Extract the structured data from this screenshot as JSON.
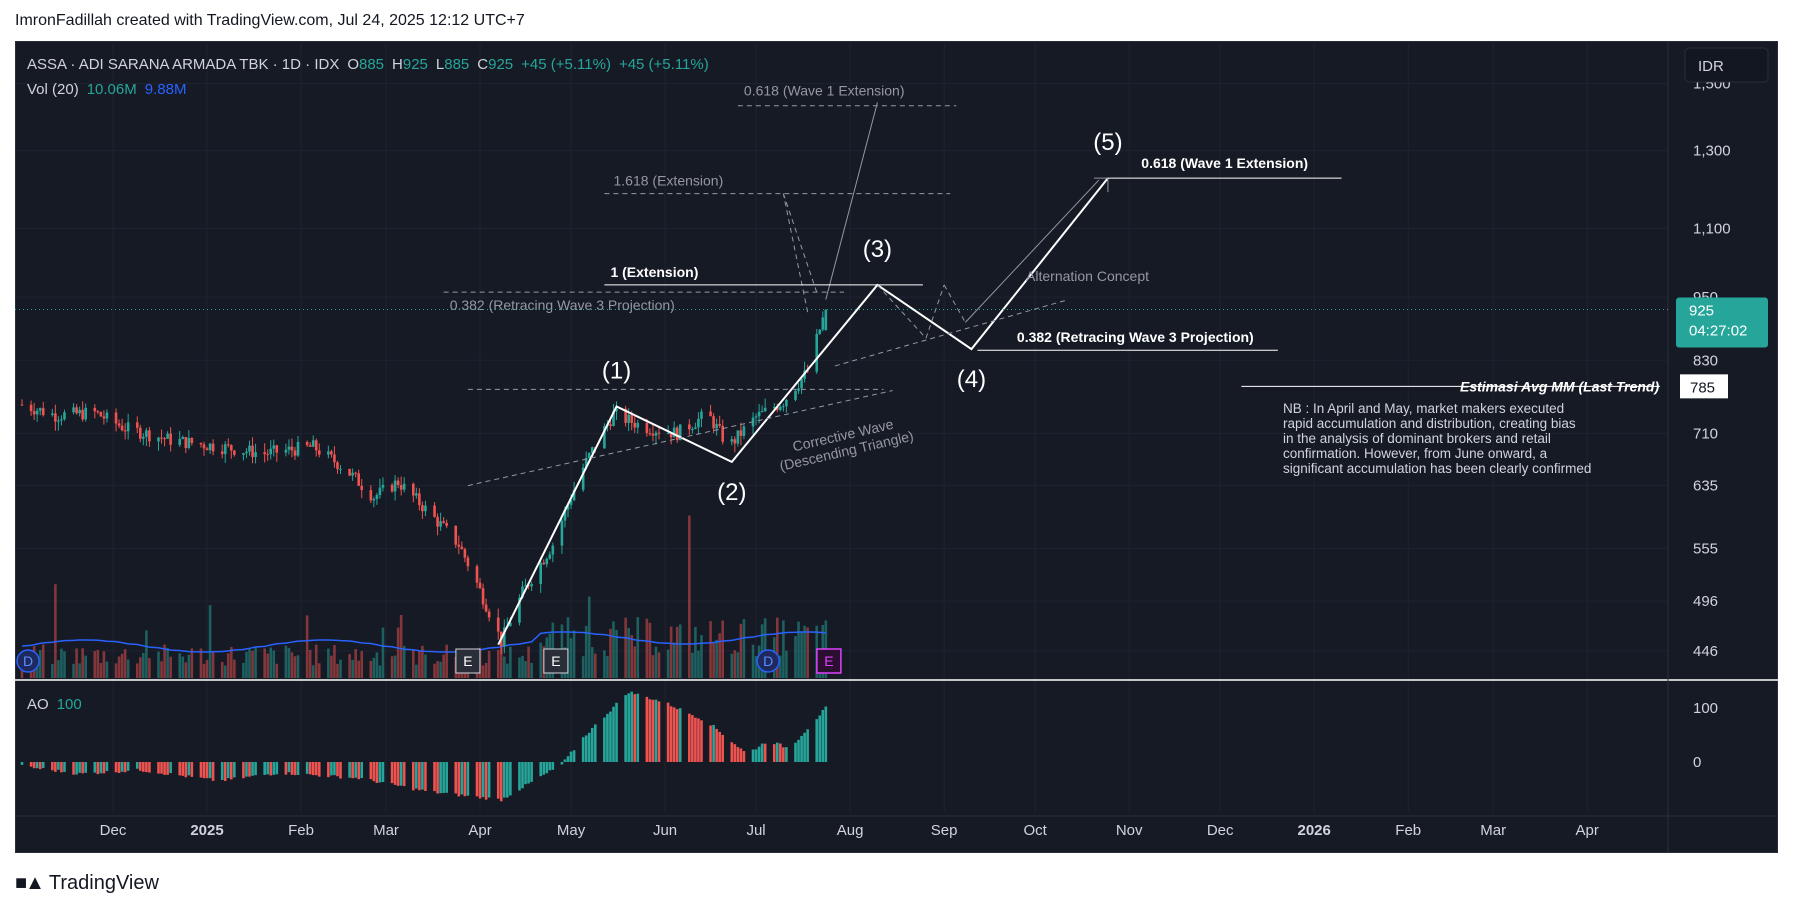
{
  "header": {
    "text": "ImronFadillah created with TradingView.com, Jul 24, 2025 12:12 UTC+7"
  },
  "footer": {
    "brand": "TradingView"
  },
  "legend": {
    "ticker": "ASSA · ADI SARANA ARMADA TBK · 1D · IDX",
    "o_label": "O",
    "o_value": "885",
    "h_label": "H",
    "h_value": "925",
    "l_label": "L",
    "l_value": "885",
    "c_label": "C",
    "c_value": "925",
    "change1": "+45 (+5.11%)",
    "change2": "+45 (+5.11%)",
    "vol_label": "Vol (20)",
    "vol_value1": "10.06M",
    "vol_value2": "9.88M",
    "ao_label": "AO",
    "ao_value": "100"
  },
  "currency": "IDR",
  "price_badge": {
    "price": "925",
    "countdown": "04:27:02"
  },
  "estimasi_badge": "785",
  "colors": {
    "up": "#26a69a",
    "down": "#ef5350",
    "bg": "#161a25",
    "vol_ma": "#2962ff",
    "badge": "#26a69a",
    "text": "#d1d4dc"
  },
  "chart_data": {
    "type": "candlestick",
    "title": "ASSA · ADI SARANA ARMADA TBK · 1D · IDX",
    "y_scale": "log",
    "ylim": [
      430,
      1560
    ],
    "y_ticks": [
      "1,500",
      "1,300",
      "1,100",
      "950",
      "830",
      "710",
      "635",
      "555",
      "496",
      "446"
    ],
    "y_tick_values": [
      1500,
      1300,
      1100,
      950,
      830,
      710,
      635,
      555,
      496,
      446
    ],
    "x_ticks": [
      "Dec",
      "2025",
      "Feb",
      "Mar",
      "Apr",
      "May",
      "Jun",
      "Jul",
      "Aug",
      "Sep",
      "Oct",
      "Nov",
      "Dec",
      "2026",
      "Feb",
      "Mar",
      "Apr"
    ],
    "x_tick_dates": [
      "2024-12-01",
      "2025-01-01",
      "2025-02-01",
      "2025-03-01",
      "2025-04-01",
      "2025-05-01",
      "2025-06-01",
      "2025-07-01",
      "2025-08-01",
      "2025-09-01",
      "2025-10-01",
      "2025-11-01",
      "2025-12-01",
      "2026-01-01",
      "2026-02-01",
      "2026-03-01",
      "2026-04-01"
    ],
    "price_anchors": [
      [
        "2024-11-01",
        755
      ],
      [
        "2024-11-12",
        738
      ],
      [
        "2024-11-25",
        742
      ],
      [
        "2024-12-05",
        718
      ],
      [
        "2024-12-20",
        700
      ],
      [
        "2025-01-05",
        690
      ],
      [
        "2025-01-20",
        680
      ],
      [
        "2025-02-05",
        690
      ],
      [
        "2025-02-15",
        660
      ],
      [
        "2025-02-25",
        620
      ],
      [
        "2025-03-05",
        640
      ],
      [
        "2025-03-15",
        600
      ],
      [
        "2025-03-25",
        560
      ],
      [
        "2025-04-08",
        455
      ],
      [
        "2025-04-15",
        505
      ],
      [
        "2025-04-25",
        560
      ],
      [
        "2025-05-05",
        660
      ],
      [
        "2025-05-15",
        740
      ],
      [
        "2025-05-25",
        720
      ],
      [
        "2025-06-05",
        710
      ],
      [
        "2025-06-15",
        740
      ],
      [
        "2025-06-22",
        690
      ],
      [
        "2025-07-01",
        735
      ],
      [
        "2025-07-10",
        760
      ],
      [
        "2025-07-18",
        810
      ],
      [
        "2025-07-24",
        925
      ]
    ],
    "last_candle": {
      "date": "2025-07-24",
      "open": 885,
      "high": 925,
      "low": 885,
      "close": 925
    },
    "volume": {
      "last": 10.06,
      "ma20": 9.88,
      "unit": "M"
    },
    "ao_anchors": [
      [
        "2024-11-01",
        -8
      ],
      [
        "2024-11-20",
        -22
      ],
      [
        "2024-12-10",
        -15
      ],
      [
        "2025-01-05",
        -35
      ],
      [
        "2025-01-25",
        -20
      ],
      [
        "2025-02-20",
        -30
      ],
      [
        "2025-03-15",
        -55
      ],
      [
        "2025-04-08",
        -70
      ],
      [
        "2025-04-28",
        -5
      ],
      [
        "2025-05-05",
        45
      ],
      [
        "2025-05-20",
        130
      ],
      [
        "2025-06-01",
        110
      ],
      [
        "2025-06-15",
        75
      ],
      [
        "2025-06-28",
        15
      ],
      [
        "2025-07-05",
        40
      ],
      [
        "2025-07-12",
        25
      ],
      [
        "2025-07-24",
        100
      ]
    ],
    "ao_ticks": [
      "100",
      "0"
    ],
    "ao_tick_values": [
      100,
      0
    ],
    "elliott_waves": [
      {
        "label": "(1)",
        "date": "2025-05-16",
        "price": 752
      },
      {
        "label": "(2)",
        "date": "2025-06-23",
        "price": 668
      },
      {
        "label": "(3)",
        "date": "2025-08-10",
        "price": 975
      },
      {
        "label": "(4)",
        "date": "2025-09-10",
        "price": 850
      },
      {
        "label": "(5)",
        "date": "2025-10-25",
        "price": 1225
      }
    ],
    "wave_start": {
      "date": "2025-04-07",
      "price": 452
    },
    "levels": [
      {
        "label": "0.618 (Wave 1 Extension)",
        "price": 1430,
        "from": "2025-06-25",
        "to": "2025-09-05",
        "style": "dashed"
      },
      {
        "label": "1.618 (Extension)",
        "price": 1185,
        "from": "2025-05-12",
        "to": "2025-09-03",
        "style": "dashed"
      },
      {
        "label": "1 (Extension)",
        "price": 975,
        "from": "2025-05-12",
        "to": "2025-08-25",
        "style": "solid"
      },
      {
        "label": "0.382 (Retracing Wave 3 Projection)",
        "price": 960,
        "from": "2025-03-20",
        "to": "2025-07-30",
        "style": "dashed"
      },
      {
        "label": "0.618 (Wave 1 Extension)",
        "price": 1225,
        "from": "2025-10-25",
        "to": "2026-01-10",
        "style": "solid"
      },
      {
        "label": "0.382 (Retracing Wave 3 Projection)",
        "price": 848,
        "from": "2025-09-12",
        "to": "2025-12-20",
        "style": "solid"
      },
      {
        "label": "Estimasi Avg MM (Last Trend)",
        "price": 785,
        "from": "2025-12-08",
        "to": "2026-04-25",
        "style": "solid"
      }
    ],
    "annotations": {
      "alternation": "Alternation Concept",
      "corrective_line1": "Corrective Wave",
      "corrective_line2": "(Descending Triangle)",
      "note": [
        "NB : In April and May, market makers executed",
        "rapid accumulation and distribution, creating bias",
        "in the analysis of dominant brokers and retail",
        "confirmation. However, from June onward, a",
        "significant accumulation has been clearly confirmed"
      ]
    },
    "events": [
      {
        "label": "D",
        "date": "2024-11-03",
        "type": "dividend"
      },
      {
        "label": "E",
        "date": "2025-03-28",
        "type": "earnings"
      },
      {
        "label": "E",
        "date": "2025-04-26",
        "type": "earnings"
      },
      {
        "label": "D",
        "date": "2025-07-05",
        "type": "dividend"
      },
      {
        "label": "E",
        "date": "2025-07-25",
        "type": "earnings-upcoming"
      }
    ]
  }
}
